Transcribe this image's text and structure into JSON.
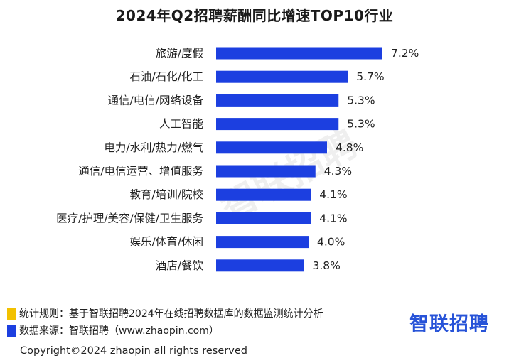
{
  "chart_data": {
    "type": "bar",
    "orientation": "horizontal",
    "title": "2024年Q2招聘薪酬同比增速TOP10行业",
    "categories": [
      "旅游/度假",
      "石油/石化/化工",
      "通信/电信/网络设备",
      "人工智能",
      "电力/水利/热力/燃气",
      "通信/电信运营、增值服务",
      "教育/培训/院校",
      "医疗/护理/美容/保健/卫生服务",
      "娱乐/体育/休闲",
      "酒店/餐饮"
    ],
    "values": [
      7.2,
      5.7,
      5.3,
      5.3,
      4.8,
      4.3,
      4.1,
      4.1,
      4.0,
      3.8
    ],
    "value_labels": [
      "7.2%",
      "5.7%",
      "5.3%",
      "5.3%",
      "4.8%",
      "4.3%",
      "4.1%",
      "4.1%",
      "4.0%",
      "3.8%"
    ],
    "unit": "%",
    "bar_color": "#1c3fe0",
    "grid": false,
    "legend": "none"
  },
  "notes": [
    {
      "text": "统计规则：基于智联招聘2024年在线招聘数据库的数据监测统计分析",
      "marker_color": "#f2c100"
    },
    {
      "text": "数据来源：智联招聘（www.zhaopin.com）",
      "marker_color": "#1c3fe0"
    }
  ],
  "watermark": "智联招聘",
  "logo": {
    "text": "智联招聘",
    "color": "#2753d8"
  },
  "copyright": "Copyright©2024 zhaopin all rights reserved"
}
